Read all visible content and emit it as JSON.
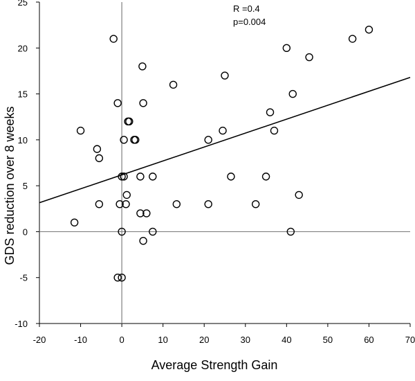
{
  "chart_data": {
    "type": "scatter",
    "title": "",
    "xlabel": "Average Strength Gain",
    "ylabel": "GDS reduction over 8 weeks",
    "xlim": [
      -20,
      70
    ],
    "ylim": [
      -10,
      25
    ],
    "x_ticks": [
      "-20",
      "-10",
      "0",
      "10",
      "20",
      "30",
      "40",
      "50",
      "60",
      "70"
    ],
    "y_ticks": [
      "-10",
      "-5",
      "0",
      "5",
      "10",
      "15",
      "20",
      "25"
    ],
    "grid": false,
    "zero_lines": true,
    "annotations": [
      "R =0.4",
      "p=0.004"
    ],
    "trendline": {
      "x": [
        -20,
        70
      ],
      "y": [
        3.15,
        16.8
      ]
    },
    "points": [
      {
        "x": -11.5,
        "y": 1
      },
      {
        "x": -10,
        "y": 11
      },
      {
        "x": -6,
        "y": 9
      },
      {
        "x": -5.5,
        "y": 8
      },
      {
        "x": -5.5,
        "y": 3
      },
      {
        "x": -2,
        "y": 21
      },
      {
        "x": -1,
        "y": 14
      },
      {
        "x": -0.5,
        "y": 3
      },
      {
        "x": -1,
        "y": -5
      },
      {
        "x": 0,
        "y": -5
      },
      {
        "x": 0,
        "y": 6
      },
      {
        "x": 0,
        "y": 0
      },
      {
        "x": 0.5,
        "y": 10
      },
      {
        "x": 0.5,
        "y": 6
      },
      {
        "x": 1,
        "y": 3
      },
      {
        "x": 1.2,
        "y": 4
      },
      {
        "x": 1.5,
        "y": 12
      },
      {
        "x": 1.8,
        "y": 12
      },
      {
        "x": 3,
        "y": 10
      },
      {
        "x": 3.3,
        "y": 10
      },
      {
        "x": 4.5,
        "y": 6
      },
      {
        "x": 4.5,
        "y": 2
      },
      {
        "x": 5,
        "y": 18
      },
      {
        "x": 5.2,
        "y": 14
      },
      {
        "x": 5.2,
        "y": -1
      },
      {
        "x": 6,
        "y": 2
      },
      {
        "x": 7.5,
        "y": 6
      },
      {
        "x": 7.5,
        "y": 0
      },
      {
        "x": 12.5,
        "y": 16
      },
      {
        "x": 13.3,
        "y": 3
      },
      {
        "x": 21,
        "y": 10
      },
      {
        "x": 21,
        "y": 3
      },
      {
        "x": 24.5,
        "y": 11
      },
      {
        "x": 25,
        "y": 17
      },
      {
        "x": 26.5,
        "y": 6
      },
      {
        "x": 32.5,
        "y": 3
      },
      {
        "x": 35,
        "y": 6
      },
      {
        "x": 36,
        "y": 13
      },
      {
        "x": 37,
        "y": 11
      },
      {
        "x": 40,
        "y": 20
      },
      {
        "x": 41,
        "y": 0
      },
      {
        "x": 41.5,
        "y": 15
      },
      {
        "x": 43,
        "y": 4
      },
      {
        "x": 45.5,
        "y": 19
      },
      {
        "x": 56,
        "y": 21
      },
      {
        "x": 60,
        "y": 22
      }
    ]
  }
}
